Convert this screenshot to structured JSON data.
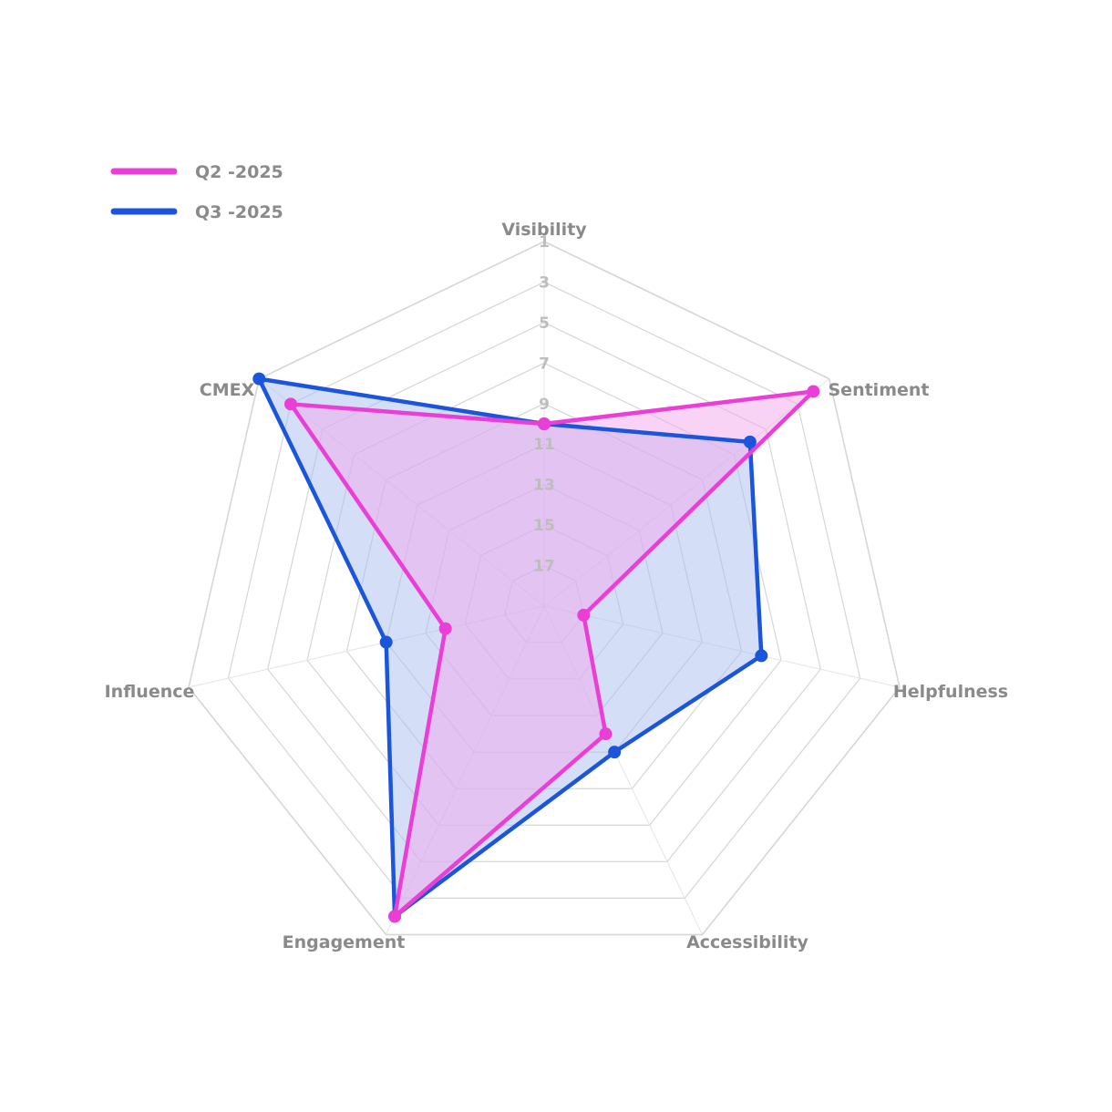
{
  "chart_data": {
    "type": "radar",
    "axes": [
      "Visibility",
      "Sentiment",
      "Helpfulness",
      "Accessibility",
      "Engagement",
      "Influence",
      "CMEX"
    ],
    "ticks": [
      "1",
      "3",
      "5",
      "7",
      "9",
      "11",
      "13",
      "15",
      "17"
    ],
    "scale": {
      "outer": 1,
      "center": 19,
      "reversed": true
    },
    "grid": true,
    "legend_position": "top-left",
    "series": [
      {
        "name": "Q2 -2025",
        "color": "#ea3fd6",
        "fill": "#f2a8ec",
        "values": [
          10,
          2,
          17,
          12,
          2,
          14,
          3
        ]
      },
      {
        "name": "Q3 -2025",
        "color": "#1b55db",
        "fill": "#a9bff0",
        "values": [
          10,
          6,
          8,
          11,
          2,
          11,
          1
        ]
      }
    ]
  }
}
